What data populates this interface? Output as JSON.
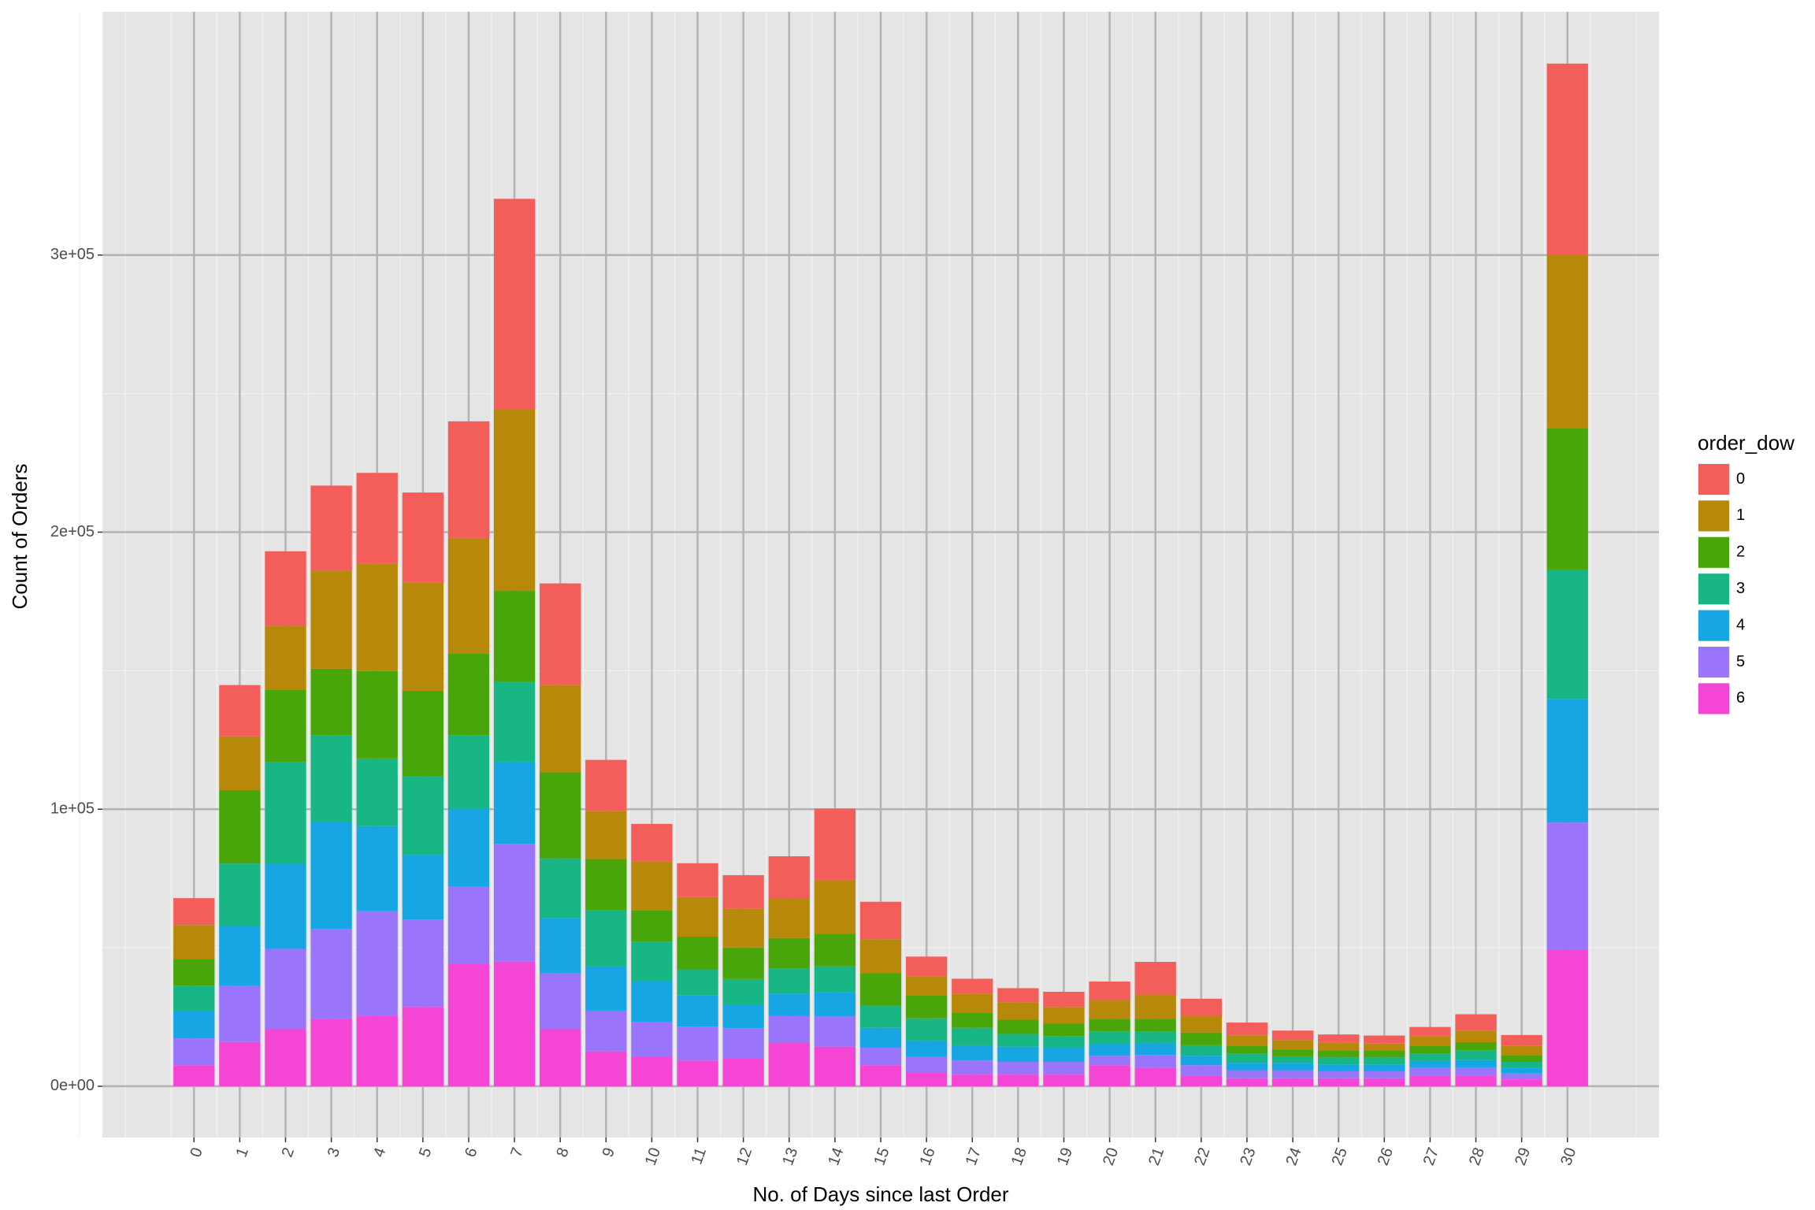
{
  "chart_data": {
    "type": "stacked_bar",
    "x_label": "No. of Days since last Order",
    "y_label": "Count of Orders",
    "legend_title": "order_dow",
    "legend": "right",
    "grid": true,
    "categories": [
      "0",
      "1",
      "2",
      "3",
      "4",
      "5",
      "6",
      "7",
      "8",
      "9",
      "10",
      "11",
      "12",
      "13",
      "14",
      "15",
      "16",
      "17",
      "18",
      "19",
      "20",
      "21",
      "22",
      "23",
      "24",
      "25",
      "26",
      "27",
      "28",
      "29",
      "30"
    ],
    "ylim": [
      -18500,
      387800
    ],
    "yticks": [
      {
        "value": 0,
        "label": "0e+00"
      },
      {
        "value": 100000,
        "label": "1e+05"
      },
      {
        "value": 200000,
        "label": "2e+05"
      },
      {
        "value": 300000,
        "label": "3e+05"
      }
    ],
    "series": [
      {
        "name": "0",
        "color": "#F35E5A",
        "values": [
          9700,
          18500,
          26900,
          30700,
          32800,
          32400,
          42100,
          75800,
          36600,
          18500,
          13500,
          12200,
          12200,
          15200,
          25700,
          13500,
          7200,
          5500,
          5100,
          5500,
          6700,
          11800,
          6300,
          4600,
          3400,
          2900,
          2900,
          3400,
          5900,
          3800,
          69000
        ]
      },
      {
        "name": "1",
        "color": "#B8880A",
        "values": [
          12200,
          19400,
          23200,
          35400,
          38700,
          39200,
          41700,
          65700,
          31600,
          17300,
          17700,
          14300,
          13900,
          14300,
          19400,
          12200,
          6700,
          6700,
          6300,
          5900,
          6700,
          8800,
          5900,
          3800,
          3400,
          2900,
          2500,
          3400,
          4200,
          3400,
          62700
        ]
      },
      {
        "name": "2",
        "color": "#49A60A",
        "values": [
          9700,
          26500,
          26100,
          24000,
          31600,
          30700,
          29500,
          32800,
          31200,
          18500,
          11400,
          11800,
          11400,
          10900,
          11800,
          11800,
          8400,
          5500,
          5100,
          4600,
          4600,
          4600,
          4600,
          2900,
          2500,
          2500,
          2500,
          2900,
          2900,
          2500,
          50900
        ]
      },
      {
        "name": "3",
        "color": "#18B585",
        "values": [
          9300,
          22700,
          36600,
          31200,
          24400,
          28600,
          26500,
          29000,
          21500,
          20200,
          14300,
          9300,
          9300,
          9300,
          9300,
          8000,
          8000,
          6300,
          4600,
          4200,
          4600,
          4200,
          3800,
          3400,
          2500,
          2500,
          2500,
          2500,
          3400,
          2100,
          46700
        ]
      },
      {
        "name": "4",
        "color": "#15A6E3",
        "values": [
          9700,
          21500,
          30700,
          38700,
          30700,
          23200,
          28200,
          29500,
          19800,
          16000,
          14700,
          11400,
          8400,
          8000,
          8800,
          7200,
          5900,
          5500,
          5500,
          5100,
          4200,
          4200,
          3400,
          2500,
          2500,
          2500,
          2500,
          2500,
          2900,
          2100,
          44600
        ]
      },
      {
        "name": "5",
        "color": "#9A75FC",
        "values": [
          9700,
          20200,
          29000,
          32400,
          37900,
          31600,
          27800,
          42500,
          20200,
          14700,
          12600,
          12200,
          10900,
          9700,
          10900,
          6300,
          5500,
          5100,
          4600,
          4600,
          3400,
          4600,
          3800,
          2900,
          2900,
          2500,
          2500,
          2900,
          2900,
          2100,
          45900
        ]
      },
      {
        "name": "6",
        "color": "#F545D4",
        "values": [
          7600,
          16000,
          20600,
          24400,
          25300,
          28600,
          44200,
          45000,
          20600,
          12600,
          10500,
          9300,
          10100,
          15600,
          14300,
          7600,
          5100,
          4200,
          4200,
          4200,
          7600,
          6700,
          3800,
          2900,
          2900,
          2900,
          2900,
          3800,
          3800,
          2500,
          49300
        ]
      }
    ]
  }
}
